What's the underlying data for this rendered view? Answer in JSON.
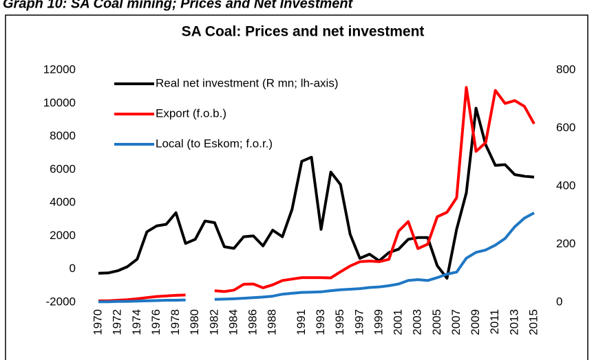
{
  "caption": "Graph 10: SA Coal mining; Prices and Net Investment",
  "chart_data": {
    "type": "line",
    "title": "SA Coal: Prices and net investment",
    "categories": [
      "1970",
      null,
      "1972",
      null,
      "1974",
      null,
      "1976",
      null,
      "1978",
      null,
      "1980",
      null,
      "1982",
      null,
      "1984",
      null,
      "1986",
      null,
      "1988",
      null,
      null,
      "1991",
      null,
      "1993",
      null,
      "1995",
      null,
      "1997",
      null,
      "1999",
      null,
      "2001",
      null,
      "2003",
      null,
      "2005",
      null,
      "2007",
      null,
      "2009",
      null,
      "2011",
      null,
      "2013",
      null,
      "2015"
    ],
    "ylim": [
      -2000,
      12000
    ],
    "yticks": [
      -2000,
      0,
      2000,
      4000,
      6000,
      8000,
      10000,
      12000
    ],
    "y2lim": [
      0,
      800
    ],
    "y2ticks": [
      0,
      200,
      400,
      600,
      800
    ],
    "legend": "upper left",
    "series": [
      {
        "name": "Real net investment (R mn; lh-axis)",
        "color": "#000000",
        "values": [
          -250,
          -230,
          -100,
          150,
          600,
          2250,
          2600,
          2700,
          3400,
          1550,
          1800,
          2900,
          2800,
          1350,
          1250,
          1950,
          2000,
          1400,
          2350,
          1950,
          3600,
          6500,
          6750,
          2400,
          5850,
          5100,
          2100,
          650,
          900,
          500,
          1000,
          1200,
          1800,
          1900,
          1900,
          200,
          -550,
          2400,
          4600,
          9700,
          7500,
          6250,
          6300,
          5700,
          5600,
          5550
        ]
      },
      {
        "name": "Export (f.o.b.)",
        "color": "#ff0000",
        "axis": "y2",
        "values": [
          5,
          5,
          7,
          9,
          12,
          16,
          20,
          22,
          24,
          25,
          null,
          null,
          40,
          37,
          42,
          62,
          63,
          50,
          60,
          75,
          80,
          85,
          85,
          85,
          84,
          105,
          125,
          140,
          142,
          140,
          148,
          245,
          278,
          185,
          200,
          295,
          310,
          360,
          740,
          520,
          550,
          730,
          685,
          695,
          675,
          615
        ]
      },
      {
        "name": "Local (to Eskom; f.o.r.)",
        "color": "#1f77c4",
        "axis": "y2",
        "values": [
          2,
          2,
          3,
          3,
          4,
          5,
          6,
          7,
          7,
          8,
          null,
          null,
          10,
          11,
          12,
          14,
          16,
          18,
          21,
          28,
          31,
          34,
          35,
          36,
          40,
          43,
          45,
          47,
          51,
          53,
          57,
          63,
          75,
          78,
          75,
          85,
          97,
          104,
          152,
          172,
          180,
          197,
          220,
          260,
          290,
          308
        ]
      }
    ]
  }
}
